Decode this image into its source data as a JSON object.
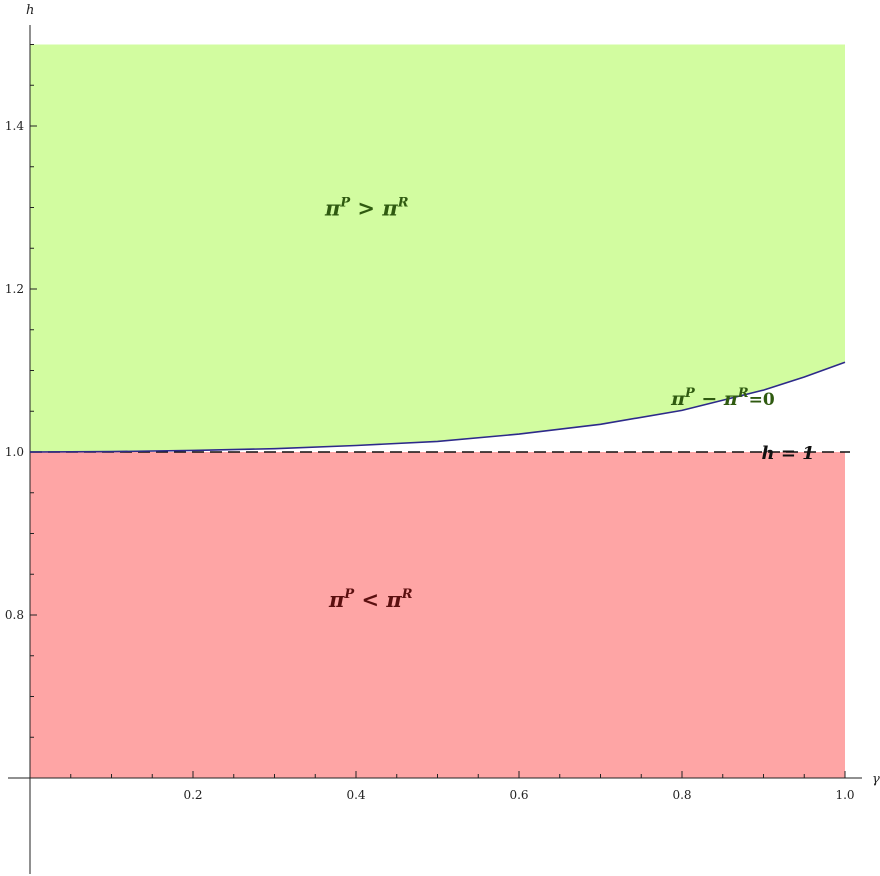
{
  "chart_data": {
    "type": "area",
    "xlabel": "γ",
    "ylabel": "h",
    "xlim": [
      0.0,
      1.0
    ],
    "ylim": [
      0.6,
      1.5
    ],
    "x_ticks": [
      0.2,
      0.4,
      0.6,
      0.8,
      1.0
    ],
    "x_tick_labels": [
      "0.2",
      "0.4",
      "0.6",
      "0.8",
      "1.0"
    ],
    "y_ticks": [
      0.8,
      1.0,
      1.2,
      1.4
    ],
    "y_tick_labels": [
      "0.8",
      "1.0",
      "1.2",
      "1.4"
    ],
    "grid": false,
    "regions": [
      {
        "name": "upper",
        "color": "#d2fca0",
        "label_main": "π",
        "label_sup1": "P",
        "label_op": " > π",
        "label_sup2": "R",
        "label_color": "#2f5a10",
        "label_at": [
          0.45,
          1.29
        ]
      },
      {
        "name": "lower",
        "color": "#fea5a5",
        "label_main": "π",
        "label_sup1": "P",
        "label_op": " < π",
        "label_sup2": "R",
        "label_color": "#5a0f0f",
        "label_at": [
          0.455,
          0.81
        ]
      }
    ],
    "boundary_curve": {
      "color": "#2d2a8a",
      "x": [
        0.0,
        0.1,
        0.2,
        0.3,
        0.4,
        0.5,
        0.6,
        0.7,
        0.8,
        0.9,
        0.95,
        1.0
      ],
      "y": [
        1.0,
        1.0005,
        1.002,
        1.004,
        1.008,
        1.013,
        1.022,
        1.034,
        1.051,
        1.076,
        1.092,
        1.11
      ],
      "label_main": "π",
      "label_sup1": "P",
      "label_op": " − π",
      "label_sup2": "R",
      "label_tail": "=0",
      "label_color": "#2f5a10",
      "label_at": [
        0.86,
        1.075
      ]
    },
    "reference_line": {
      "y": 1.0,
      "style": "dashed",
      "label": "h = 1",
      "label_at": [
        0.94,
        1.0
      ]
    }
  }
}
